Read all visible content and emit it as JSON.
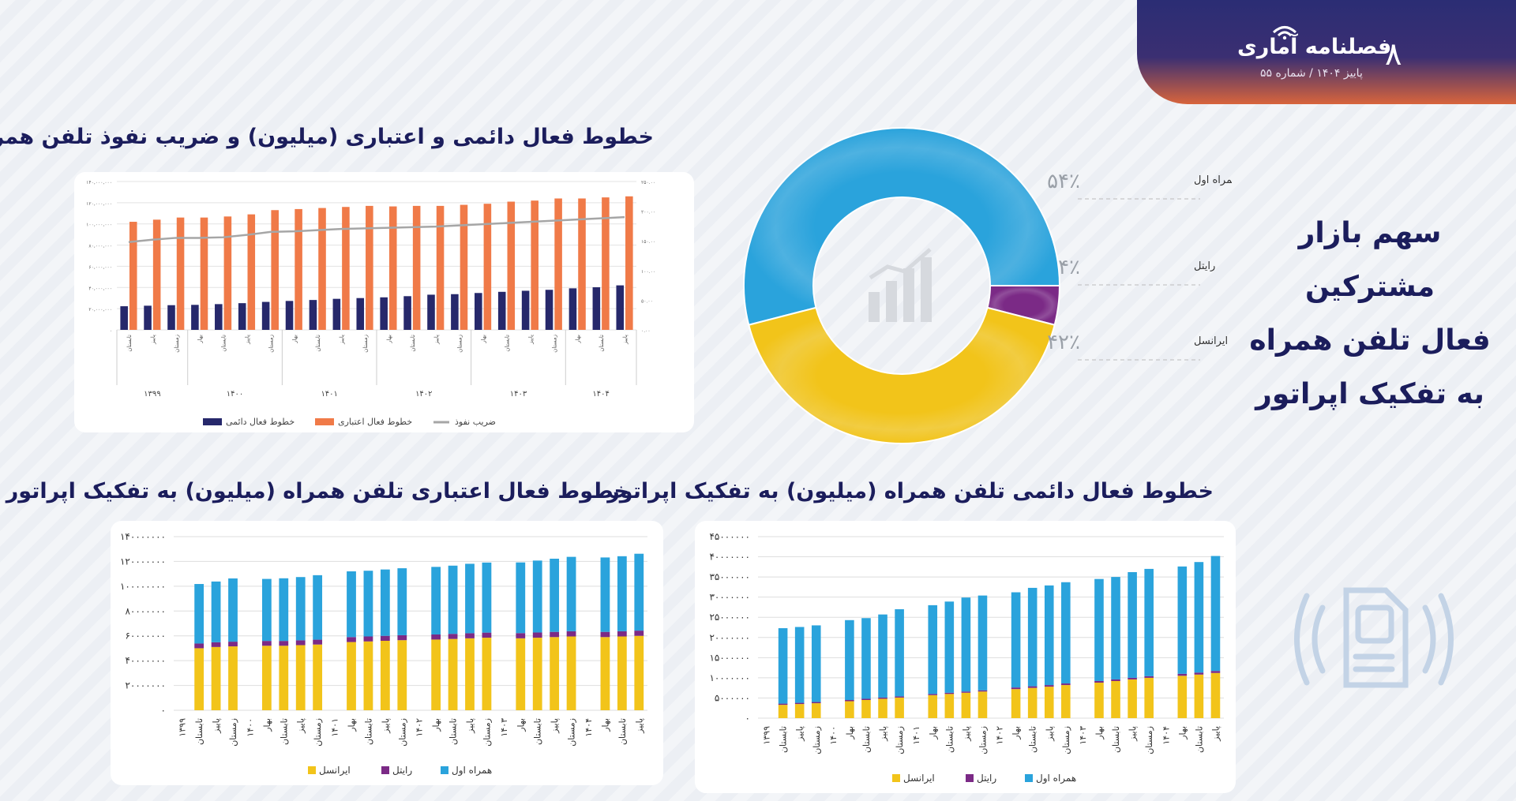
{
  "header": {
    "brand": "فصلنامه آماری",
    "issue": "پاییز ۱۴۰۴ / شماره ۵۵",
    "page_number": "۸"
  },
  "side_title": {
    "line1": "سهم بازار مشترکین",
    "line2": "فعال تلفن همراه",
    "line3": "به تفکیک اپراتور"
  },
  "colors": {
    "navy": "#26286b",
    "orange": "#f07a48",
    "gray": "#a6a6a6",
    "yellow": "#f2c41a",
    "purple": "#7b2a86",
    "blue": "#2aa3dc"
  },
  "icons": [
    "line-chart-icon",
    "sim-card-icon",
    "wifi-icon"
  ],
  "chart_data": [
    {
      "type": "bar",
      "title": "خطوط فعال دائمی و اعتباری (میلیون) و ضریب نفوذ تلفن همراه",
      "categories": [
        "تابستان",
        "پاییز",
        "زمستان",
        "بهار",
        "تابستان",
        "پاییز",
        "زمستان",
        "بهار",
        "تابستان",
        "پاییز",
        "زمستان",
        "بهار",
        "تابستان",
        "پاییز",
        "زمستان",
        "بهار",
        "تابستان",
        "پاییز",
        "زمستان",
        "بهار",
        "تابستان",
        "پاییز"
      ],
      "groups": [
        {
          "label": "۱۳۹۹",
          "count": 3
        },
        {
          "label": "۱۴۰۰",
          "count": 4
        },
        {
          "label": "۱۴۰۱",
          "count": 4
        },
        {
          "label": "۱۴۰۲",
          "count": 4
        },
        {
          "label": "۱۴۰۳",
          "count": 4
        },
        {
          "label": "۱۴۰۴",
          "count": 3
        }
      ],
      "y_ticks": [
        "۰",
        "۲۰,۰۰۰,۰۰۰",
        "۴۰,۰۰۰,۰۰۰",
        "۶۰,۰۰۰,۰۰۰",
        "۸۰,۰۰۰,۰۰۰",
        "۱۰۰,۰۰۰,۰۰۰",
        "۱۲۰,۰۰۰,۰۰۰",
        "۱۴۰,۰۰۰,۰۰۰"
      ],
      "y2_ticks": [
        "۰.۰۰",
        "۵۰.۰۰",
        "۱۰۰.۰۰",
        "۱۵۰.۰۰",
        "۲۰۰.۰۰",
        "۲۵۰.۰۰"
      ],
      "ylim": [
        0,
        140000000
      ],
      "y2lim": [
        0,
        250
      ],
      "series": [
        {
          "name": "خطوط فعال دائمی",
          "type": "bar",
          "values": [
            22300000,
            22800000,
            23300000,
            23600000,
            24300000,
            25200000,
            26400000,
            27300000,
            28200000,
            29300000,
            30000000,
            30700000,
            31800000,
            33200000,
            33700000,
            34800000,
            35900000,
            36900000,
            37800000,
            39200000,
            40200000,
            42000000
          ]
        },
        {
          "name": "خطوط فعال اعتباری",
          "type": "bar",
          "values": [
            102000000,
            104000000,
            106000000,
            106000000,
            107000000,
            109000000,
            113000000,
            114000000,
            115000000,
            116000000,
            117000000,
            116500000,
            117000000,
            117000000,
            118000000,
            119000000,
            121000000,
            122000000,
            124000000,
            124000000,
            125000000,
            126000000
          ]
        },
        {
          "name": "ضریب نفوذ",
          "type": "line",
          "values": [
            148,
            152,
            155,
            155,
            156,
            160,
            165,
            166,
            168,
            170,
            171,
            172,
            173,
            174,
            176,
            178,
            180,
            182,
            184,
            186,
            188,
            190
          ]
        }
      ],
      "legend": "bottom",
      "grid": true
    },
    {
      "type": "pie",
      "title": "سهم بازار مشترکین فعال تلفن همراه به تفکیک اپراتور",
      "labels": [
        "همراه اول",
        "رایتل",
        "ایرانسل"
      ],
      "values": [
        54,
        4,
        42
      ],
      "value_labels": [
        "۵۴٪",
        "۴٪",
        "۴۲٪"
      ]
    },
    {
      "type": "bar",
      "stacked": true,
      "title": "خطوط فعال اعتباری تلفن همراه (میلیون) به تفکیک اپراتور",
      "categories": [
        "",
        "تابستان",
        "پاییز",
        "زمستان",
        "",
        "بهار",
        "تابستان",
        "پاییز",
        "زمستان",
        "",
        "بهار",
        "تابستان",
        "پاییز",
        "زمستان",
        "",
        "بهار",
        "تابستان",
        "پاییز",
        "زمستان",
        "",
        "بهار",
        "تابستان",
        "پاییز",
        "زمستان",
        "",
        "بهار",
        "تابستان",
        "پاییز"
      ],
      "x_labels": [
        "۱۳۹۹",
        "تابستان",
        "پاییز",
        "زمستان",
        "۱۴۰۰",
        "بهار",
        "تابستان",
        "پاییز",
        "زمستان",
        "۱۴۰۱",
        "بهار",
        "تابستان",
        "پاییز",
        "زمستان",
        "۱۴۰۲",
        "بهار",
        "تابستان",
        "پاییز",
        "زمستان",
        "۱۴۰۳",
        "بهار",
        "تابستان",
        "پاییز",
        "زمستان",
        "۱۴۰۴",
        "بهار",
        "تابستان",
        "پاییز"
      ],
      "y_ticks": [
        "۰",
        "۲۰۰۰۰۰۰۰",
        "۴۰۰۰۰۰۰۰",
        "۶۰۰۰۰۰۰۰",
        "۸۰۰۰۰۰۰۰",
        "۱۰۰۰۰۰۰۰۰",
        "۱۲۰۰۰۰۰۰۰",
        "۱۴۰۰۰۰۰۰۰"
      ],
      "ylim": [
        0,
        140000000
      ],
      "series": [
        {
          "name": "ایرانسل",
          "values": [
            null,
            50000000,
            51000000,
            51500000,
            null,
            52000000,
            52000000,
            52500000,
            53000000,
            null,
            55000000,
            55500000,
            56000000,
            56500000,
            null,
            57000000,
            57500000,
            58000000,
            58500000,
            null,
            58000000,
            58500000,
            59000000,
            59500000,
            null,
            59000000,
            59500000,
            60000000
          ]
        },
        {
          "name": "رایتل",
          "values": [
            null,
            3800000,
            3800000,
            3800000,
            null,
            3900000,
            3900000,
            3900000,
            3900000,
            null,
            4000000,
            4000000,
            4000000,
            4000000,
            null,
            4100000,
            4100000,
            4100000,
            4100000,
            null,
            4200000,
            4200000,
            4200000,
            4200000,
            null,
            4200000,
            4200000,
            4200000
          ]
        },
        {
          "name": "همراه اول",
          "values": [
            null,
            48000000,
            49000000,
            51000000,
            null,
            50000000,
            50500000,
            51000000,
            52000000,
            null,
            53000000,
            53000000,
            53500000,
            54000000,
            null,
            54500000,
            55000000,
            56000000,
            56500000,
            null,
            57000000,
            58000000,
            59000000,
            60000000,
            null,
            60000000,
            60500000,
            62000000
          ]
        }
      ],
      "legend": "bottom",
      "grid": true
    },
    {
      "type": "bar",
      "stacked": true,
      "title": "خطوط فعال دائمی تلفن همراه (میلیون) به تفکیک اپراتور",
      "categories": [
        "",
        "تابستان",
        "پاییز",
        "زمستان",
        "",
        "بهار",
        "تابستان",
        "پاییز",
        "زمستان",
        "",
        "بهار",
        "تابستان",
        "پاییز",
        "زمستان",
        "",
        "بهار",
        "تابستان",
        "پاییز",
        "زمستان",
        "",
        "بهار",
        "تابستان",
        "پاییز",
        "زمستان",
        "",
        "بهار",
        "تابستان",
        "پاییز"
      ],
      "x_labels": [
        "۱۳۹۹",
        "تابستان",
        "پاییز",
        "زمستان",
        "۱۴۰۰",
        "بهار",
        "تابستان",
        "پاییز",
        "زمستان",
        "۱۴۰۱",
        "بهار",
        "تابستان",
        "پاییز",
        "زمستان",
        "۱۴۰۲",
        "بهار",
        "تابستان",
        "پاییز",
        "زمستان",
        "۱۴۰۳",
        "بهار",
        "تابستان",
        "پاییز",
        "زمستان",
        "۱۴۰۴",
        "بهار",
        "تابستان",
        "پاییز"
      ],
      "y_ticks": [
        "۰",
        "۵۰۰۰۰۰۰",
        "۱۰۰۰۰۰۰۰",
        "۱۵۰۰۰۰۰۰",
        "۲۰۰۰۰۰۰۰",
        "۲۵۰۰۰۰۰۰",
        "۳۰۰۰۰۰۰۰",
        "۳۵۰۰۰۰۰۰",
        "۴۰۰۰۰۰۰۰",
        "۴۵۰۰۰۰۰۰"
      ],
      "ylim": [
        0,
        45000000
      ],
      "series": [
        {
          "name": "ایرانسل",
          "values": [
            null,
            3300000,
            3500000,
            3700000,
            null,
            4200000,
            4500000,
            4800000,
            5100000,
            null,
            5700000,
            6000000,
            6300000,
            6600000,
            null,
            7200000,
            7500000,
            7800000,
            8200000,
            null,
            8800000,
            9200000,
            9600000,
            10000000,
            null,
            10500000,
            10800000,
            11200000
          ]
        },
        {
          "name": "رایتل",
          "values": [
            null,
            300000,
            300000,
            300000,
            null,
            300000,
            300000,
            300000,
            300000,
            null,
            300000,
            300000,
            300000,
            300000,
            null,
            400000,
            400000,
            400000,
            400000,
            null,
            400000,
            400000,
            400000,
            400000,
            null,
            500000,
            500000,
            500000
          ]
        },
        {
          "name": "همراه اول",
          "values": [
            null,
            18700000,
            18800000,
            19000000,
            null,
            19800000,
            20000000,
            20600000,
            21600000,
            null,
            22000000,
            22600000,
            23300000,
            23500000,
            null,
            23600000,
            24400000,
            24700000,
            25100000,
            null,
            25300000,
            25400000,
            26200000,
            26600000,
            null,
            26600000,
            27400000,
            28500000
          ]
        }
      ],
      "legend": "bottom",
      "grid": true
    }
  ]
}
